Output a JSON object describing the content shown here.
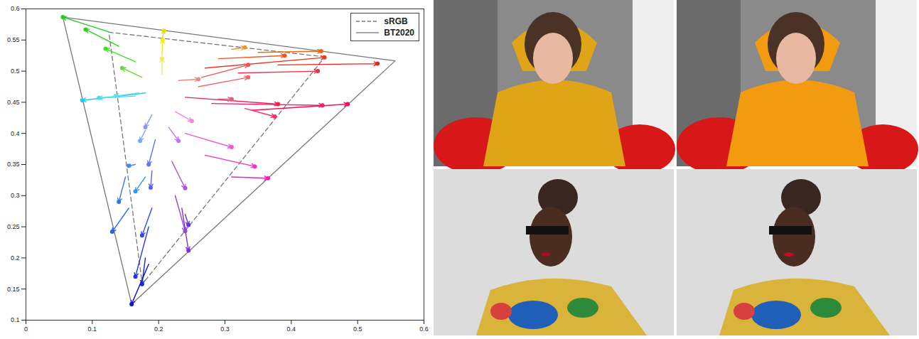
{
  "chart_data": {
    "type": "vector",
    "xlim": [
      0,
      0.6
    ],
    "xticks": [
      0,
      0.1,
      0.2,
      0.3,
      0.4,
      0.5,
      0.6
    ],
    "ylim": [
      0.1,
      0.6
    ],
    "yticks": [
      0.1,
      0.15,
      0.2,
      0.25,
      0.3,
      0.35,
      0.4,
      0.45,
      0.5,
      0.55,
      0.6
    ],
    "legend": "northeast",
    "series": [
      {
        "name": "sRGB",
        "color": "#777777",
        "line_style": "dashed",
        "x": [
          0.4507,
          0.125,
          0.1754,
          0.4507
        ],
        "y": [
          0.5229,
          0.5625,
          0.1579,
          0.5229
        ]
      },
      {
        "name": "BT2020",
        "color": "#777777",
        "line_style": "solid",
        "x": [
          0.5566,
          0.0556,
          0.1593,
          0.5566
        ],
        "y": [
          0.5165,
          0.5868,
          0.1258,
          0.5165
        ]
      }
    ],
    "arrows": [
      {
        "from": [
          0.125,
          0.563
        ],
        "to": [
          0.0556,
          0.5868
        ],
        "color": "#22cc22"
      },
      {
        "from": [
          0.14,
          0.54
        ],
        "to": [
          0.09,
          0.567
        ],
        "color": "#33cc22"
      },
      {
        "from": [
          0.165,
          0.515
        ],
        "to": [
          0.12,
          0.536
        ],
        "color": "#44dd33"
      },
      {
        "from": [
          0.175,
          0.49
        ],
        "to": [
          0.145,
          0.505
        ],
        "color": "#66dd33"
      },
      {
        "from": [
          0.205,
          0.55
        ],
        "to": [
          0.208,
          0.565
        ],
        "color": "#eedd00"
      },
      {
        "from": [
          0.205,
          0.525
        ],
        "to": [
          0.206,
          0.55
        ],
        "color": "#eeee22"
      },
      {
        "from": [
          0.205,
          0.495
        ],
        "to": [
          0.205,
          0.52
        ],
        "color": "#eeee55"
      },
      {
        "from": [
          0.31,
          0.535
        ],
        "to": [
          0.33,
          0.538
        ],
        "color": "#ee9922"
      },
      {
        "from": [
          0.35,
          0.53
        ],
        "to": [
          0.445,
          0.532
        ],
        "color": "#ee6611"
      },
      {
        "from": [
          0.29,
          0.52
        ],
        "to": [
          0.39,
          0.525
        ],
        "color": "#ee5522"
      },
      {
        "from": [
          0.27,
          0.505
        ],
        "to": [
          0.45,
          0.522
        ],
        "color": "#ee3322"
      },
      {
        "from": [
          0.38,
          0.51
        ],
        "to": [
          0.53,
          0.512
        ],
        "color": "#ee2222"
      },
      {
        "from": [
          0.265,
          0.49
        ],
        "to": [
          0.335,
          0.51
        ],
        "color": "#ee5555"
      },
      {
        "from": [
          0.32,
          0.497
        ],
        "to": [
          0.44,
          0.5
        ],
        "color": "#ee3344"
      },
      {
        "from": [
          0.26,
          0.475
        ],
        "to": [
          0.335,
          0.49
        ],
        "color": "#ee6666"
      },
      {
        "from": [
          0.23,
          0.485
        ],
        "to": [
          0.26,
          0.487
        ],
        "color": "#ee8888"
      },
      {
        "from": [
          0.24,
          0.458
        ],
        "to": [
          0.38,
          0.447
        ],
        "color": "#ee2255"
      },
      {
        "from": [
          0.28,
          0.448
        ],
        "to": [
          0.447,
          0.445
        ],
        "color": "#ee2266"
      },
      {
        "from": [
          0.34,
          0.437
        ],
        "to": [
          0.485,
          0.447
        ],
        "color": "#ee1155"
      },
      {
        "from": [
          0.29,
          0.455
        ],
        "to": [
          0.31,
          0.455
        ],
        "color": "#ee5577"
      },
      {
        "from": [
          0.33,
          0.44
        ],
        "to": [
          0.375,
          0.427
        ],
        "color": "#ee3366"
      },
      {
        "from": [
          0.225,
          0.435
        ],
        "to": [
          0.25,
          0.42
        ],
        "color": "#ee88dd"
      },
      {
        "from": [
          0.24,
          0.4
        ],
        "to": [
          0.31,
          0.378
        ],
        "color": "#ee55dd"
      },
      {
        "from": [
          0.27,
          0.365
        ],
        "to": [
          0.345,
          0.347
        ],
        "color": "#ee33cc"
      },
      {
        "from": [
          0.31,
          0.33
        ],
        "to": [
          0.365,
          0.328
        ],
        "color": "#ee22bb"
      },
      {
        "from": [
          0.215,
          0.41
        ],
        "to": [
          0.23,
          0.388
        ],
        "color": "#bb77ee"
      },
      {
        "from": [
          0.22,
          0.355
        ],
        "to": [
          0.24,
          0.312
        ],
        "color": "#aa55dd"
      },
      {
        "from": [
          0.225,
          0.3
        ],
        "to": [
          0.24,
          0.243
        ],
        "color": "#9944dd"
      },
      {
        "from": [
          0.235,
          0.28
        ],
        "to": [
          0.245,
          0.212
        ],
        "color": "#7733dd"
      },
      {
        "from": [
          0.24,
          0.27
        ],
        "to": [
          0.245,
          0.253
        ],
        "color": "#6633dd"
      },
      {
        "from": [
          0.19,
          0.43
        ],
        "to": [
          0.18,
          0.41
        ],
        "color": "#8899ee"
      },
      {
        "from": [
          0.195,
          0.39
        ],
        "to": [
          0.185,
          0.35
        ],
        "color": "#6677ee"
      },
      {
        "from": [
          0.19,
          0.34
        ],
        "to": [
          0.188,
          0.313
        ],
        "color": "#5566ee"
      },
      {
        "from": [
          0.19,
          0.28
        ],
        "to": [
          0.175,
          0.236
        ],
        "color": "#3344ee"
      },
      {
        "from": [
          0.185,
          0.25
        ],
        "to": [
          0.165,
          0.17
        ],
        "color": "#2233ee"
      },
      {
        "from": [
          0.18,
          0.2
        ],
        "to": [
          0.175,
          0.158
        ],
        "color": "#1122dd"
      },
      {
        "from": [
          0.185,
          0.19
        ],
        "to": [
          0.1593,
          0.1258
        ],
        "color": "#1111cc"
      },
      {
        "from": [
          0.18,
          0.405
        ],
        "to": [
          0.172,
          0.388
        ],
        "color": "#77aaee"
      },
      {
        "from": [
          0.165,
          0.35
        ],
        "to": [
          0.155,
          0.348
        ],
        "color": "#4488ee"
      },
      {
        "from": [
          0.18,
          0.33
        ],
        "to": [
          0.165,
          0.307
        ],
        "color": "#3399ee"
      },
      {
        "from": [
          0.15,
          0.33
        ],
        "to": [
          0.14,
          0.29
        ],
        "color": "#3377dd"
      },
      {
        "from": [
          0.155,
          0.28
        ],
        "to": [
          0.13,
          0.242
        ],
        "color": "#2266dd"
      },
      {
        "from": [
          0.18,
          0.465
        ],
        "to": [
          0.085,
          0.453
        ],
        "color": "#22ccee"
      },
      {
        "from": [
          0.165,
          0.46
        ],
        "to": [
          0.11,
          0.457
        ],
        "color": "#44ddee"
      },
      {
        "from": [
          0.17,
          0.465
        ],
        "to": [
          0.135,
          0.46
        ],
        "color": "#66ddee"
      }
    ]
  }
}
